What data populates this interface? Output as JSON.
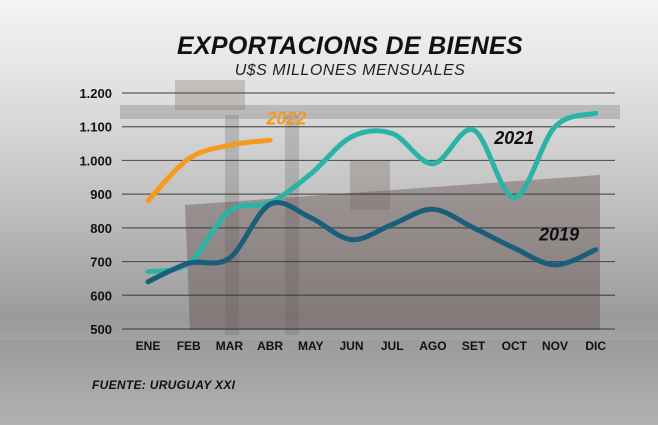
{
  "chart_data": {
    "type": "line",
    "title": "EXPORTACIONS DE BIENES",
    "subtitle": "U$S MILLONES MENSUALES",
    "categories": [
      "ENE",
      "FEB",
      "MAR",
      "ABR",
      "MAY",
      "JUN",
      "JUL",
      "AGO",
      "SET",
      "OCT",
      "NOV",
      "DIC"
    ],
    "yticks": [
      "1.200",
      "1.100",
      "1.000",
      "900",
      "800",
      "700",
      "600",
      "500"
    ],
    "ylim": [
      500,
      1200
    ],
    "grid": true,
    "series": [
      {
        "name": "2022",
        "color": "#f39a1f",
        "label_at": 3.4,
        "label_value": 1107,
        "values": [
          880,
          1005,
          1045,
          1060,
          null,
          null,
          null,
          null,
          null,
          null,
          null,
          null
        ]
      },
      {
        "name": "2021",
        "color": "#2bb3a6",
        "label_at": 9.0,
        "label_value": 1048,
        "values": [
          670,
          695,
          850,
          875,
          960,
          1070,
          1080,
          990,
          1090,
          890,
          1100,
          1140
        ]
      },
      {
        "name": "2019",
        "color": "#1b5e7a",
        "label_at": 10.1,
        "label_value": 763,
        "values": [
          640,
          695,
          710,
          870,
          830,
          765,
          810,
          855,
          800,
          740,
          690,
          735
        ]
      }
    ],
    "source": "FUENTE: URUGUAY XXI"
  }
}
